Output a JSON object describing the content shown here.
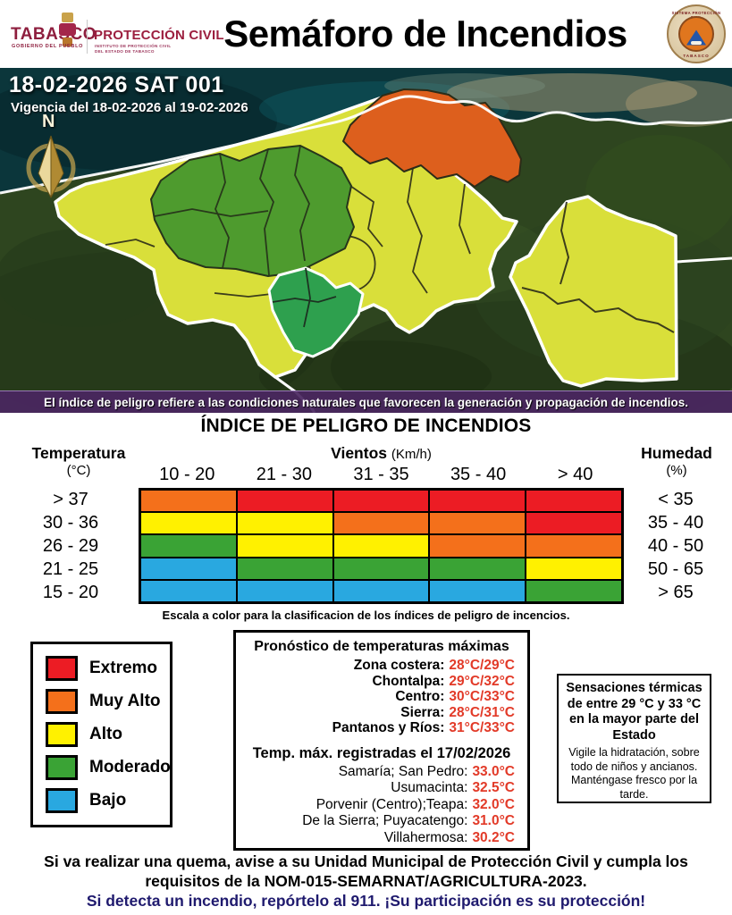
{
  "header": {
    "brand": {
      "tabasco": "TABASCO",
      "tagline": "GOBIERNO DEL PUEBLO",
      "agency": "PROTECCIÓN CIVIL",
      "agency_sub1": "INSTITUTO DE PROTECCIÓN CIVIL",
      "agency_sub2": "DEL ESTADO DE TABASCO"
    },
    "title": "Semáforo de Incendios",
    "seal": {
      "top": "SISTEMA PROTECCIÓN CIVIL",
      "bottom": "TABASCO"
    }
  },
  "map": {
    "date_line": "18-02-2026 SAT 001",
    "validity": "Vigencia del 18-02-2026 al 19-02-2026",
    "compass": "N",
    "caption": "El índice de peligro refiere a las condiciones naturales que favorecen la generación y propagación de incendios."
  },
  "index_table": {
    "title": "ÍNDICE DE PELIGRO DE INCENDIOS",
    "temp_header": "Temperatura",
    "temp_unit": "(°C)",
    "wind_header": "Vientos",
    "wind_unit": "(Km/h)",
    "humidity_header": "Humedad",
    "humidity_unit": "(%)",
    "wind_ranges": [
      "10 - 20",
      "21 - 30",
      "31 - 35",
      "35 - 40",
      "> 40"
    ],
    "temp_ranges": [
      "> 37",
      "30 - 36",
      "26 - 29",
      "21 - 25",
      "15 - 20"
    ],
    "humidity_ranges": [
      "< 35",
      "35 - 40",
      "40 - 50",
      "50 - 65",
      "> 65"
    ],
    "cells": [
      [
        "orange",
        "red",
        "red",
        "red",
        "red"
      ],
      [
        "yellow",
        "yellow",
        "orange",
        "orange",
        "red"
      ],
      [
        "green",
        "yellow",
        "yellow",
        "orange",
        "orange"
      ],
      [
        "blue",
        "green",
        "green",
        "green",
        "yellow"
      ],
      [
        "blue",
        "blue",
        "blue",
        "blue",
        "green"
      ]
    ],
    "caption": "Escala a color para la clasificacion de los índices de peligro de incencios."
  },
  "colors": {
    "red": "#EC1C24",
    "orange": "#F4701B",
    "yellow": "#FFF100",
    "green": "#3AA335",
    "blue": "#29A8E0",
    "value_red": "#E23A28",
    "footer_navy": "#1F1A6E"
  },
  "legend": {
    "items": [
      {
        "label": "Extremo",
        "color": "red"
      },
      {
        "label": "Muy Alto",
        "color": "orange"
      },
      {
        "label": "Alto",
        "color": "yellow"
      },
      {
        "label": "Moderado",
        "color": "green"
      },
      {
        "label": "Bajo",
        "color": "blue"
      }
    ]
  },
  "forecast": {
    "title": "Pronóstico de temperaturas máximas",
    "regions": [
      {
        "label": "Zona costera:",
        "value": "28°C/29°C"
      },
      {
        "label": "Chontalpa:",
        "value": "29°C/32°C"
      },
      {
        "label": "Centro:",
        "value": "30°C/33°C"
      },
      {
        "label": "Sierra:",
        "value": "28°C/31°C"
      },
      {
        "label": "Pantanos y Ríos:",
        "value": "31°C/33°C"
      }
    ],
    "recorded_title": "Temp. máx. registradas el 17/02/2026",
    "stations": [
      {
        "label": "Samaría; San Pedro:",
        "value": "33.0°C"
      },
      {
        "label": "Usumacinta:",
        "value": "32.5°C"
      },
      {
        "label": "Porvenir (Centro);Teapa:",
        "value": "32.0°C"
      },
      {
        "label": "De la Sierra; Puyacatengo:",
        "value": "31.0°C"
      },
      {
        "label": "Villahermosa:",
        "value": "30.2°C"
      }
    ]
  },
  "thermal": {
    "bold": "Sensaciones térmicas de entre 29 °C y 33 °C en la mayor parte del Estado",
    "normal": "Vigile la hidratación, sobre todo de niños y ancianos. Manténgase fresco por la tarde."
  },
  "footer": {
    "line1": "Si va realizar una quema, avise a su Unidad Municipal de Protección Civil y cumpla los requisitos de la NOM-015-SEMARNAT/AGRICULTURA-2023.",
    "line2": "Si detecta un incendio, repórtelo al 911. ¡Su participación es su protección!"
  }
}
